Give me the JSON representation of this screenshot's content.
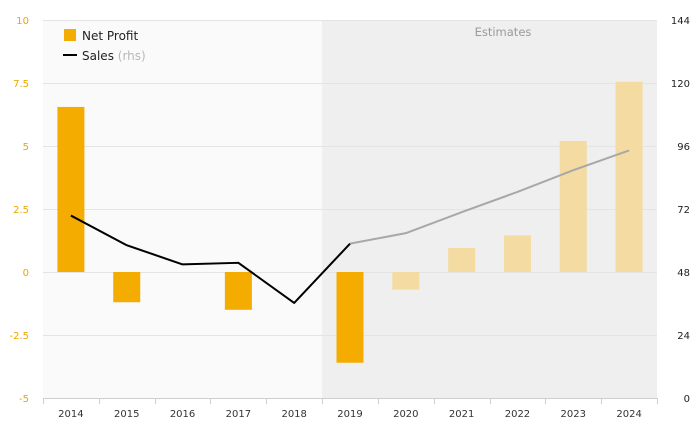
{
  "chart_data": {
    "type": "bar+line",
    "categories": [
      "2014",
      "2015",
      "2016",
      "2017",
      "2018",
      "2019",
      "2020",
      "2021",
      "2022",
      "2023",
      "2024"
    ],
    "series": [
      {
        "name": "Net Profit",
        "type": "bar",
        "axis": "left",
        "values": [
          6.55,
          -1.2,
          0,
          -1.5,
          0,
          -3.6,
          -0.7,
          0.95,
          1.45,
          5.2,
          7.55
        ],
        "estimate": [
          false,
          false,
          false,
          false,
          false,
          false,
          true,
          true,
          true,
          true,
          true
        ]
      },
      {
        "name": "Sales",
        "type": "line",
        "axis": "right",
        "values": [
          69.5,
          58.2,
          50.9,
          51.5,
          36.2,
          58.8,
          62.8,
          70.8,
          78.5,
          86.8,
          94.3
        ],
        "estimate": [
          false,
          false,
          false,
          false,
          false,
          false,
          true,
          true,
          true,
          true,
          true
        ]
      }
    ],
    "left_axis": {
      "ylim": [
        -5,
        10
      ],
      "ticks": [
        "10",
        "7.5",
        "5",
        "2.5",
        "0",
        "-2.5",
        "-5"
      ],
      "tick_values": [
        10,
        7.5,
        5,
        2.5,
        0,
        -2.5,
        -5
      ]
    },
    "right_axis": {
      "ylim": [
        0,
        144
      ],
      "ticks": [
        "144",
        "120",
        "96",
        "72",
        "48",
        "24",
        "0"
      ],
      "tick_values": [
        144,
        120,
        96,
        72,
        48,
        24,
        0
      ]
    },
    "estimates_label": "Estimates",
    "estimates_start_category": "2019",
    "legend": {
      "position": "top-left",
      "items": [
        "Net Profit",
        "Sales"
      ],
      "sales_suffix": "(rhs)"
    },
    "grid": true,
    "colors": {
      "bar": "#F5AC00",
      "bar_estimate": "#F3DBA2",
      "line": "#000000",
      "line_estimate": "#A8A8A8",
      "estimates_background": "#EFEFEF",
      "plot_background": "#FAFAFA",
      "left_tick": "#E8A800",
      "right_tick": "#222222",
      "x_tick": "#333333"
    }
  }
}
